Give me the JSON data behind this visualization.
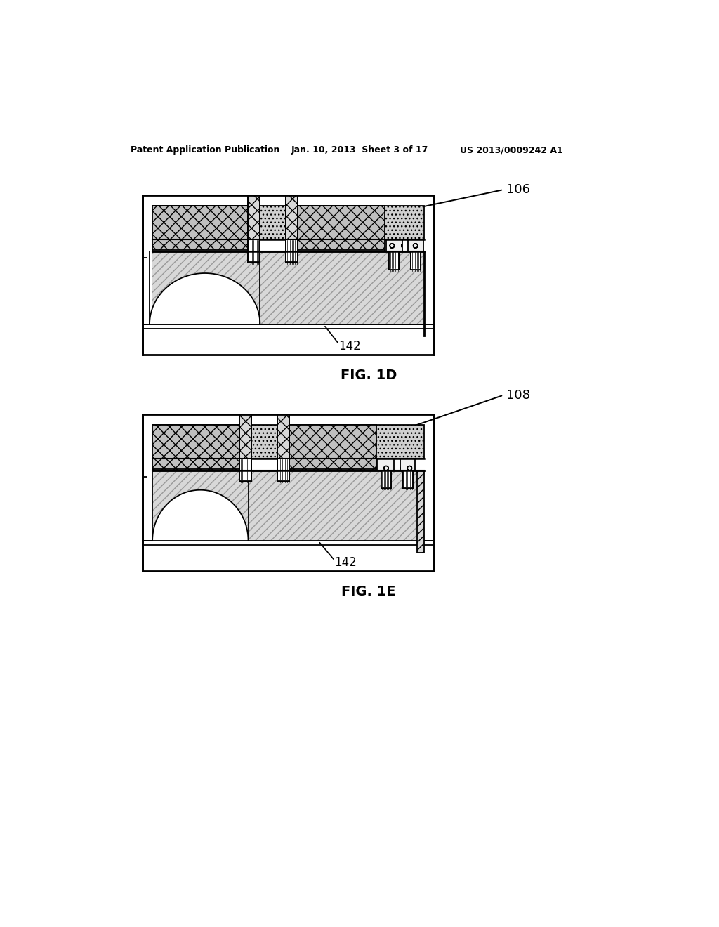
{
  "bg_color": "#ffffff",
  "line_color": "#000000",
  "header_left": "Patent Application Publication",
  "header_mid": "Jan. 10, 2013  Sheet 3 of 17",
  "header_right": "US 2013/0009242 A1",
  "fig1d_label": "FIG. 1D",
  "fig1e_label": "FIG. 1E",
  "ref_106": "106",
  "ref_108": "108",
  "ref_142": "142",
  "gray_hatch": "#cccccc",
  "gray_dot": "#e8e8e8",
  "gray_diag": "#d0d0d0",
  "white": "#ffffff",
  "black": "#000000"
}
